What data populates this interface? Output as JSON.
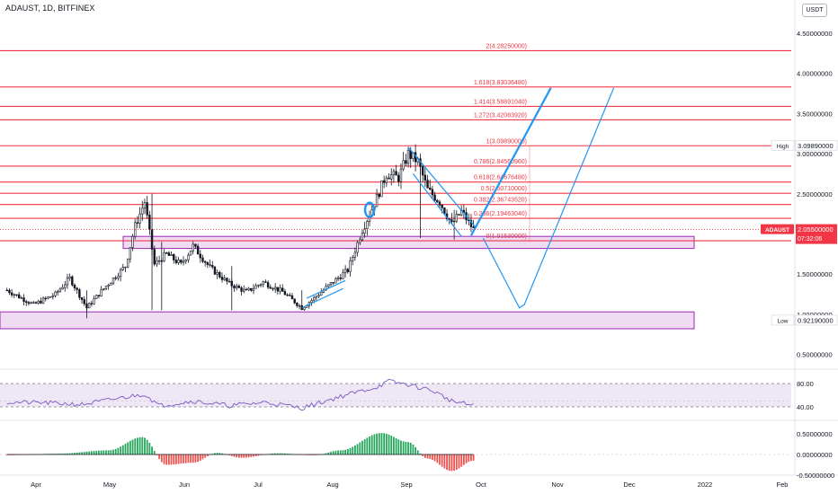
{
  "header": {
    "title": "ADAUST, 1D, BITFINEX",
    "currency_button": "USDT"
  },
  "chart_data": {
    "type": "candlestick",
    "symbol": "ADAUST",
    "interval": "1D",
    "exchange": "BITFINEX",
    "y_axis": {
      "range": [
        0.5,
        4.5
      ],
      "ticks": [
        "4.50000000",
        "4.00000000",
        "3.50000000",
        "3.00000000",
        "2.50000000",
        "1.50000000",
        "1.00000000",
        "0.50000000"
      ]
    },
    "x_axis": {
      "ticks": [
        "Apr",
        "May",
        "Jun",
        "Jul",
        "Aug",
        "Sep",
        "Oct",
        "Nov",
        "Dec",
        "2022",
        "Feb"
      ]
    },
    "price_path": [
      {
        "date": "2021-03-20",
        "close": 1.3
      },
      {
        "date": "2021-03-31",
        "close": 1.12
      },
      {
        "date": "2021-04-09",
        "close": 1.25
      },
      {
        "date": "2021-04-15",
        "close": 1.45
      },
      {
        "date": "2021-04-22",
        "close": 1.08
      },
      {
        "date": "2021-04-29",
        "close": 1.32
      },
      {
        "date": "2021-05-08",
        "close": 1.6
      },
      {
        "date": "2021-05-12",
        "close": 2.1
      },
      {
        "date": "2021-05-16",
        "close": 2.4
      },
      {
        "date": "2021-05-20",
        "close": 1.62
      },
      {
        "date": "2021-05-25",
        "close": 1.75
      },
      {
        "date": "2021-05-31",
        "close": 1.62
      },
      {
        "date": "2021-06-05",
        "close": 1.85
      },
      {
        "date": "2021-06-12",
        "close": 1.58
      },
      {
        "date": "2021-06-20",
        "close": 1.38
      },
      {
        "date": "2021-06-27",
        "close": 1.28
      },
      {
        "date": "2021-07-04",
        "close": 1.4
      },
      {
        "date": "2021-07-12",
        "close": 1.28
      },
      {
        "date": "2021-07-20",
        "close": 1.08
      },
      {
        "date": "2021-07-25",
        "close": 1.2
      },
      {
        "date": "2021-08-01",
        "close": 1.38
      },
      {
        "date": "2021-08-08",
        "close": 1.55
      },
      {
        "date": "2021-08-14",
        "close": 2.05
      },
      {
        "date": "2021-08-20",
        "close": 2.45
      },
      {
        "date": "2021-08-24",
        "close": 2.75
      },
      {
        "date": "2021-08-29",
        "close": 2.7
      },
      {
        "date": "2021-09-02",
        "close": 3.0
      },
      {
        "date": "2021-09-06",
        "close": 2.9
      },
      {
        "date": "2021-09-10",
        "close": 2.55
      },
      {
        "date": "2021-09-15",
        "close": 2.4
      },
      {
        "date": "2021-09-20",
        "close": 2.12
      },
      {
        "date": "2021-09-24",
        "close": 2.28
      },
      {
        "date": "2021-09-29",
        "close": 2.055
      }
    ],
    "fibonacci": [
      {
        "label": "2(4.28250000)",
        "value": 4.2825
      },
      {
        "label": "1.618(3.83036480)",
        "value": 3.8304
      },
      {
        "label": "1.414(3.58891040)",
        "value": 3.5889
      },
      {
        "label": "1.272(3.42083920)",
        "value": 3.4208
      },
      {
        "label": "1(3.09890000)",
        "value": 3.0989
      },
      {
        "label": "0.786(2.84560960)",
        "value": 2.8456
      },
      {
        "label": "0.618(2.64676480)",
        "value": 2.6468
      },
      {
        "label": "0.5(2.50710000)",
        "value": 2.5071
      },
      {
        "label": "0.382(2.36743520)",
        "value": 2.3674
      },
      {
        "label": "0.236(2.19463040)",
        "value": 2.1946
      },
      {
        "label": "0(1.91530000)",
        "value": 1.9153
      }
    ],
    "zones": [
      {
        "low": 1.82,
        "high": 1.97
      },
      {
        "low": 0.82,
        "high": 1.03
      }
    ],
    "projection": [
      {
        "date": "2021-10-03",
        "value": 1.95
      },
      {
        "date": "2021-10-18",
        "value": 1.08
      },
      {
        "date": "2021-10-20",
        "value": 1.12
      },
      {
        "date": "2021-11-26",
        "value": 3.82
      }
    ],
    "trend_lines": [
      {
        "from": {
          "date": "2021-09-28",
          "value": 1.98
        },
        "to": {
          "date": "2021-10-31",
          "value": 3.82
        }
      }
    ],
    "badges": [
      {
        "name": "High",
        "value_label": "3.09890000",
        "value": 3.0989
      },
      {
        "name": "ADAUST",
        "value_label": "2.05500000",
        "value": 2.055,
        "countdown": "07:32:06"
      },
      {
        "name": "Low",
        "value_label": "0.92190000",
        "value": 0.9219
      }
    ],
    "rsi": {
      "ticks": [
        "80.00",
        "40.00"
      ],
      "range": [
        20,
        100
      ],
      "band": [
        30,
        70
      ],
      "path": [
        {
          "date": "2021-03-20",
          "value": 48
        },
        {
          "date": "2021-04-05",
          "value": 47
        },
        {
          "date": "2021-04-20",
          "value": 44
        },
        {
          "date": "2021-05-10",
          "value": 58
        },
        {
          "date": "2021-05-16",
          "value": 62
        },
        {
          "date": "2021-05-22",
          "value": 42
        },
        {
          "date": "2021-06-05",
          "value": 50
        },
        {
          "date": "2021-06-20",
          "value": 42
        },
        {
          "date": "2021-07-05",
          "value": 48
        },
        {
          "date": "2021-07-20",
          "value": 38
        },
        {
          "date": "2021-08-05",
          "value": 58
        },
        {
          "date": "2021-08-20",
          "value": 74
        },
        {
          "date": "2021-08-25",
          "value": 84
        },
        {
          "date": "2021-09-02",
          "value": 78
        },
        {
          "date": "2021-09-12",
          "value": 68
        },
        {
          "date": "2021-09-20",
          "value": 50
        },
        {
          "date": "2021-09-29",
          "value": 42
        }
      ]
    },
    "macd": {
      "ticks": [
        "0.50000000",
        "0.00000000",
        "-0.50000000"
      ],
      "range": [
        -0.55,
        0.6
      ],
      "histogram": [
        {
          "date": "2021-03-20",
          "value": -0.02
        },
        {
          "date": "2021-04-10",
          "value": 0.02
        },
        {
          "date": "2021-05-01",
          "value": 0.1
        },
        {
          "date": "2021-05-15",
          "value": 0.42
        },
        {
          "date": "2021-05-25",
          "value": -0.25
        },
        {
          "date": "2021-06-05",
          "value": -0.2
        },
        {
          "date": "2021-06-15",
          "value": 0.04
        },
        {
          "date": "2021-06-25",
          "value": -0.08
        },
        {
          "date": "2021-07-10",
          "value": 0.03
        },
        {
          "date": "2021-07-25",
          "value": -0.02
        },
        {
          "date": "2021-08-05",
          "value": 0.1
        },
        {
          "date": "2021-08-22",
          "value": 0.52
        },
        {
          "date": "2021-09-02",
          "value": 0.3
        },
        {
          "date": "2021-09-10",
          "value": -0.1
        },
        {
          "date": "2021-09-20",
          "value": -0.4
        },
        {
          "date": "2021-09-29",
          "value": -0.15
        }
      ]
    },
    "colors": {
      "fib": "#f23645",
      "zone_fill": "#e1bee7",
      "zone_border": "#9c27b0",
      "projection": "#2196f3",
      "candle": "#131722",
      "rsi_line": "#7e57c2",
      "rsi_band": "#ede7f6",
      "macd_up": "#26a65b",
      "macd_down": "#ef5350",
      "badge_last": "#f23645",
      "axis_text": "#131722"
    }
  }
}
